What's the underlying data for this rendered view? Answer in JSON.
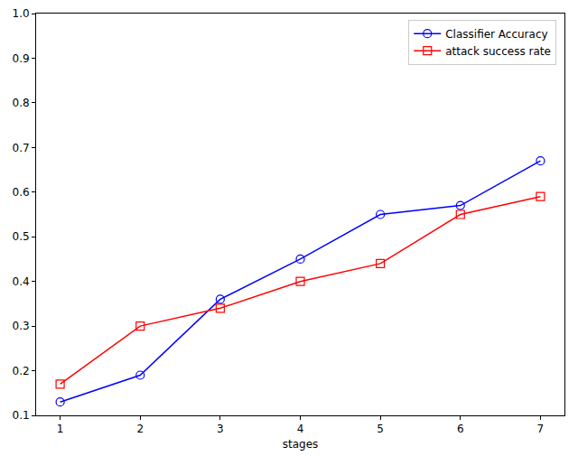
{
  "chart_data": {
    "type": "line",
    "x_label": "stages",
    "x": [
      1,
      2,
      3,
      4,
      5,
      6,
      7
    ],
    "series": [
      {
        "name": "Classifier Accuracy",
        "color": "#0000ff",
        "marker": "circle",
        "line_style": "solid",
        "values": [
          0.13,
          0.19,
          0.36,
          0.45,
          0.55,
          0.57,
          0.67
        ]
      },
      {
        "name": "attack success rate",
        "color": "#ff0000",
        "marker": "square",
        "line_style": "solid",
        "values": [
          0.17,
          0.3,
          0.34,
          0.4,
          0.44,
          0.55,
          0.59
        ]
      }
    ],
    "xlim": [
      0.7,
      7.3
    ],
    "xticks": [
      1,
      2,
      3,
      4,
      5,
      6,
      7
    ],
    "ylim": [
      0.1,
      1.0
    ],
    "yticks": [
      0.1,
      0.2,
      0.3,
      0.4,
      0.5,
      0.6,
      0.7,
      0.8,
      0.9,
      {
        "value": 1.0,
        "label": "1.0"
      }
    ],
    "legend": "upper right",
    "grid": false
  }
}
